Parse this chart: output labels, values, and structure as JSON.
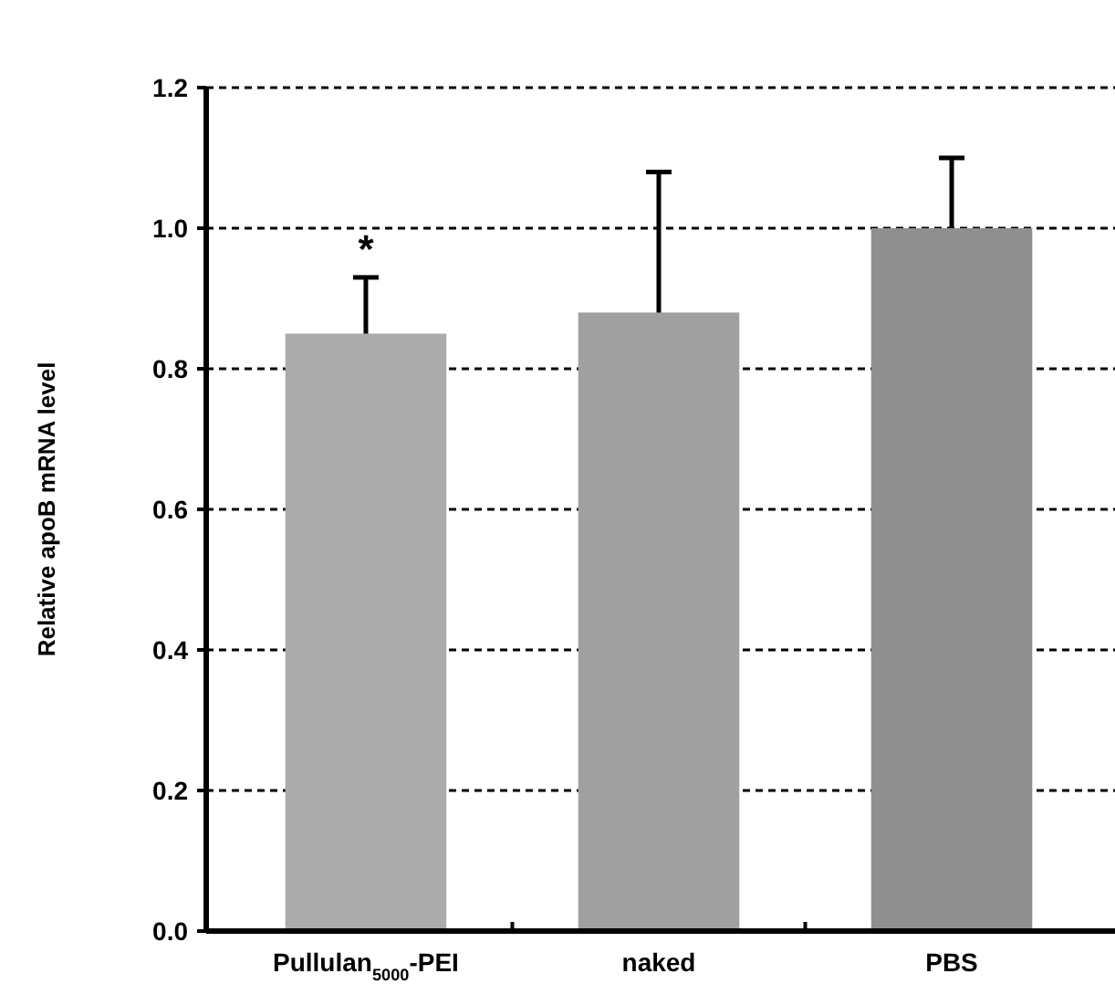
{
  "chart_data": {
    "type": "bar",
    "ylabel": "Relative apoB mRNA level",
    "categories": [
      "Pullulan$_{5000}$-PEI",
      "naked",
      "PBS"
    ],
    "values": [
      0.85,
      0.88,
      1.0
    ],
    "errors": [
      0.08,
      0.2,
      0.1
    ],
    "colors": [
      "#ababab",
      "#a0a0a0",
      "#8f8f8f"
    ],
    "ylim": [
      0,
      1.2
    ],
    "yticks": [
      {
        "value": 0,
        "label": "0.0"
      },
      0.2,
      0.4,
      0.6,
      0.8,
      {
        "value": 1,
        "label": "1.0"
      },
      1.2
    ],
    "grid": "y",
    "annotations": [
      "*"
    ]
  }
}
